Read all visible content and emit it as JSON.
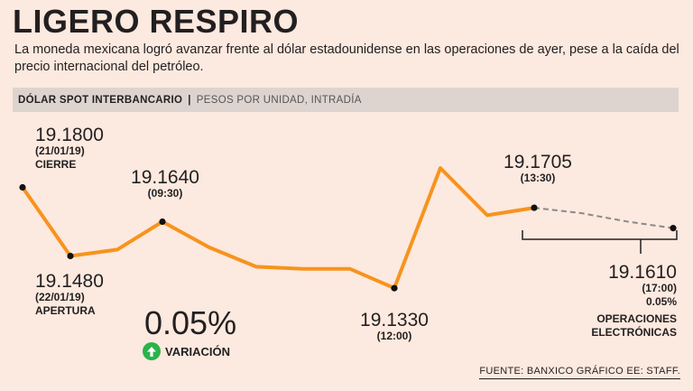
{
  "header": {
    "title": "LIGERO RESPIRO",
    "subtitle": "La moneda mexicana logró avanzar frente al dólar estadounidense en las operaciones de ayer, pese a la caída del precio internacional del petróleo."
  },
  "section": {
    "title": "DÓLAR SPOT INTERBANCARIO",
    "separator": "|",
    "subtitle": "PESOS POR UNIDAD, INTRADÍA"
  },
  "summary": {
    "variation_value": "0.05%",
    "variation_label": "VARIACIÓN",
    "variation_icon": "arrow-up-icon"
  },
  "source": "FUENTE: BANXICO GRÁFICO EE: STAFF.",
  "colors": {
    "line": "#f7931e",
    "dashed": "#8a8a8a",
    "positive": "#2bb34a",
    "background": "#fce9df",
    "bar": "#ded4cf"
  },
  "chart_data": {
    "type": "line",
    "title": "DÓLAR SPOT INTERBANCARIO",
    "ylabel": "PESOS POR UNIDAD",
    "ylim": [
      19.12,
      19.2
    ],
    "series": [
      {
        "name": "Intradía",
        "style": "solid",
        "values": [
          19.18,
          19.148,
          19.151,
          19.164,
          19.152,
          19.143,
          19.142,
          19.142,
          19.133,
          19.189,
          19.167,
          19.1705
        ]
      },
      {
        "name": "Operaciones electrónicas",
        "style": "dashed",
        "values": [
          19.1705,
          19.168,
          19.164,
          19.161
        ]
      }
    ],
    "annotations": [
      {
        "value": "19.1800",
        "time": "(21/01/19)",
        "label": "CIERRE"
      },
      {
        "value": "19.1480",
        "time": "(22/01/19)",
        "label": "APERTURA"
      },
      {
        "value": "19.1640",
        "time": "(09:30)",
        "label": ""
      },
      {
        "value": "19.1330",
        "time": "(12:00)",
        "label": ""
      },
      {
        "value": "19.1705",
        "time": "(13:30)",
        "label": ""
      },
      {
        "value": "19.1610",
        "time": "(17:00)",
        "extra": "0.05%",
        "label": "OPERACIONES ELECTRÓNICAS"
      }
    ]
  }
}
